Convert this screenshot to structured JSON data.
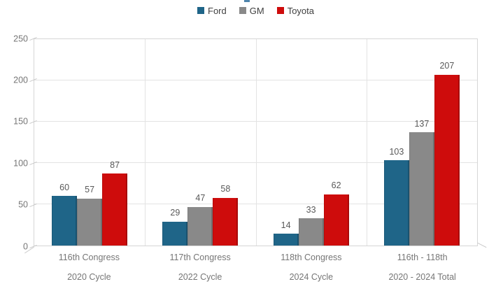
{
  "colors": {
    "background": "#ffffff",
    "gridline": "#e3e3e3",
    "axis": "#d6d6d6",
    "tick": "#c9c9c9",
    "value_label": "#595959",
    "axis_label": "#767676",
    "legend_text": "#3f3f3f",
    "title_fragment": "#4e84ac"
  },
  "chart_data": {
    "type": "bar",
    "categories": [
      "116th Congress",
      "117th Congress",
      "118th Congress",
      "116th - 118th"
    ],
    "category_sublabels": [
      "2020 Cycle",
      "2022 Cycle",
      "2024 Cycle",
      "2020 - 2024 Total"
    ],
    "series": [
      {
        "name": "Ford",
        "color": "#1f6588",
        "values": [
          60,
          29,
          14,
          103
        ]
      },
      {
        "name": "GM",
        "color": "#898989",
        "values": [
          57,
          47,
          33,
          137
        ]
      },
      {
        "name": "Toyota",
        "color": "#ce0c0c",
        "values": [
          87,
          58,
          62,
          207
        ]
      }
    ],
    "ylim": [
      0,
      250
    ],
    "yticks": [
      0,
      50,
      100,
      150,
      200,
      250
    ],
    "ytick_labels": [
      "0",
      "50",
      "100",
      "150",
      "200",
      "250"
    ],
    "legend_position": "top-center",
    "grid": true,
    "data_labels": true
  }
}
